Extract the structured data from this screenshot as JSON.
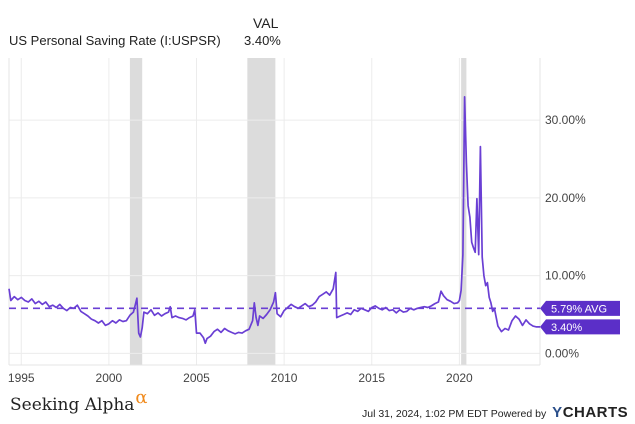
{
  "header": {
    "val_label": "VAL",
    "series_name": "US Personal Saving Rate (I:USPSR)",
    "series_value": "3.40%"
  },
  "chart_data": {
    "type": "line",
    "title": "US Personal Saving Rate (I:USPSR)",
    "xlabel": "",
    "ylabel": "",
    "x_ticks": [
      "1995",
      "2000",
      "2005",
      "2010",
      "2015",
      "2020"
    ],
    "y_ticks": [
      "0.00%",
      "10.00%",
      "20.00%",
      "30.00%"
    ],
    "xlim": [
      1994.3,
      2024.6
    ],
    "ylim": [
      -1.5,
      38
    ],
    "grid": true,
    "recessions": [
      [
        2001.2,
        2001.9
      ],
      [
        2007.9,
        2009.5
      ],
      [
        2020.1,
        2020.4
      ]
    ],
    "average": {
      "value": 5.79,
      "label": "5.79% AVG"
    },
    "last": {
      "value": 3.4,
      "label": "3.40%"
    },
    "series": [
      {
        "color": "#6a3fd4",
        "points": [
          [
            1994.3,
            8.3
          ],
          [
            1994.4,
            6.8
          ],
          [
            1994.6,
            7.3
          ],
          [
            1994.8,
            6.9
          ],
          [
            1995.0,
            7.2
          ],
          [
            1995.2,
            6.8
          ],
          [
            1995.4,
            6.6
          ],
          [
            1995.6,
            7.0
          ],
          [
            1995.8,
            6.4
          ],
          [
            1996.0,
            6.7
          ],
          [
            1996.2,
            6.3
          ],
          [
            1996.4,
            6.6
          ],
          [
            1996.6,
            6.0
          ],
          [
            1996.8,
            6.2
          ],
          [
            1997.0,
            5.9
          ],
          [
            1997.2,
            6.3
          ],
          [
            1997.4,
            5.8
          ],
          [
            1997.6,
            5.5
          ],
          [
            1997.8,
            5.9
          ],
          [
            1998.0,
            5.8
          ],
          [
            1998.2,
            6.2
          ],
          [
            1998.4,
            5.4
          ],
          [
            1998.6,
            5.1
          ],
          [
            1998.8,
            4.8
          ],
          [
            1999.0,
            4.4
          ],
          [
            1999.2,
            4.2
          ],
          [
            1999.4,
            3.9
          ],
          [
            1999.6,
            4.2
          ],
          [
            1999.8,
            3.6
          ],
          [
            2000.0,
            3.8
          ],
          [
            2000.2,
            4.2
          ],
          [
            2000.4,
            3.9
          ],
          [
            2000.6,
            4.3
          ],
          [
            2000.8,
            4.1
          ],
          [
            2001.0,
            4.2
          ],
          [
            2001.2,
            4.9
          ],
          [
            2001.4,
            5.3
          ],
          [
            2001.5,
            6.2
          ],
          [
            2001.6,
            7.1
          ],
          [
            2001.7,
            2.6
          ],
          [
            2001.8,
            2.1
          ],
          [
            2001.9,
            3.3
          ],
          [
            2002.0,
            5.3
          ],
          [
            2002.2,
            5.1
          ],
          [
            2002.4,
            5.6
          ],
          [
            2002.6,
            4.9
          ],
          [
            2002.8,
            5.2
          ],
          [
            2003.0,
            4.8
          ],
          [
            2003.2,
            5.1
          ],
          [
            2003.4,
            5.3
          ],
          [
            2003.5,
            6.0
          ],
          [
            2003.6,
            4.6
          ],
          [
            2003.8,
            4.8
          ],
          [
            2004.0,
            4.6
          ],
          [
            2004.2,
            4.5
          ],
          [
            2004.4,
            4.3
          ],
          [
            2004.6,
            4.6
          ],
          [
            2004.8,
            4.8
          ],
          [
            2004.9,
            5.6
          ],
          [
            2005.0,
            2.6
          ],
          [
            2005.2,
            2.6
          ],
          [
            2005.4,
            2.0
          ],
          [
            2005.5,
            1.3
          ],
          [
            2005.6,
            1.9
          ],
          [
            2005.8,
            2.2
          ],
          [
            2006.0,
            2.8
          ],
          [
            2006.2,
            3.1
          ],
          [
            2006.4,
            2.7
          ],
          [
            2006.6,
            3.2
          ],
          [
            2006.8,
            2.9
          ],
          [
            2007.0,
            2.7
          ],
          [
            2007.2,
            2.5
          ],
          [
            2007.4,
            2.7
          ],
          [
            2007.6,
            2.6
          ],
          [
            2007.8,
            2.9
          ],
          [
            2008.0,
            3.1
          ],
          [
            2008.2,
            4.2
          ],
          [
            2008.3,
            6.5
          ],
          [
            2008.4,
            4.6
          ],
          [
            2008.5,
            3.6
          ],
          [
            2008.6,
            4.8
          ],
          [
            2008.8,
            4.5
          ],
          [
            2009.0,
            5.0
          ],
          [
            2009.2,
            5.6
          ],
          [
            2009.4,
            6.6
          ],
          [
            2009.5,
            7.8
          ],
          [
            2009.6,
            5.1
          ],
          [
            2009.8,
            4.7
          ],
          [
            2010.0,
            5.5
          ],
          [
            2010.2,
            5.9
          ],
          [
            2010.4,
            6.3
          ],
          [
            2010.6,
            6.0
          ],
          [
            2010.8,
            5.8
          ],
          [
            2011.0,
            6.1
          ],
          [
            2011.2,
            6.4
          ],
          [
            2011.4,
            6.0
          ],
          [
            2011.6,
            6.2
          ],
          [
            2011.8,
            6.6
          ],
          [
            2012.0,
            7.3
          ],
          [
            2012.2,
            7.6
          ],
          [
            2012.4,
            7.9
          ],
          [
            2012.6,
            7.5
          ],
          [
            2012.8,
            8.3
          ],
          [
            2012.95,
            10.4
          ],
          [
            2013.0,
            4.6
          ],
          [
            2013.2,
            4.8
          ],
          [
            2013.4,
            5.0
          ],
          [
            2013.6,
            5.2
          ],
          [
            2013.8,
            5.0
          ],
          [
            2014.0,
            5.6
          ],
          [
            2014.2,
            5.4
          ],
          [
            2014.4,
            5.8
          ],
          [
            2014.6,
            5.6
          ],
          [
            2014.8,
            5.4
          ],
          [
            2015.0,
            5.9
          ],
          [
            2015.2,
            6.1
          ],
          [
            2015.4,
            5.8
          ],
          [
            2015.6,
            5.6
          ],
          [
            2015.8,
            5.9
          ],
          [
            2016.0,
            5.5
          ],
          [
            2016.2,
            5.6
          ],
          [
            2016.4,
            5.2
          ],
          [
            2016.6,
            5.6
          ],
          [
            2016.8,
            5.3
          ],
          [
            2017.0,
            5.4
          ],
          [
            2017.2,
            5.8
          ],
          [
            2017.4,
            5.6
          ],
          [
            2017.6,
            5.8
          ],
          [
            2017.8,
            5.9
          ],
          [
            2018.0,
            6.0
          ],
          [
            2018.2,
            5.9
          ],
          [
            2018.4,
            6.1
          ],
          [
            2018.6,
            6.4
          ],
          [
            2018.8,
            6.6
          ],
          [
            2018.95,
            8.0
          ],
          [
            2019.1,
            7.4
          ],
          [
            2019.3,
            6.9
          ],
          [
            2019.5,
            6.7
          ],
          [
            2019.7,
            6.4
          ],
          [
            2019.9,
            6.5
          ],
          [
            2020.0,
            6.8
          ],
          [
            2020.1,
            8.1
          ],
          [
            2020.2,
            12.7
          ],
          [
            2020.3,
            33.0
          ],
          [
            2020.4,
            24.5
          ],
          [
            2020.5,
            19.0
          ],
          [
            2020.6,
            17.5
          ],
          [
            2020.7,
            14.3
          ],
          [
            2020.8,
            13.6
          ],
          [
            2020.9,
            13.0
          ],
          [
            2021.0,
            19.9
          ],
          [
            2021.1,
            12.7
          ],
          [
            2021.2,
            26.6
          ],
          [
            2021.3,
            12.4
          ],
          [
            2021.4,
            10.0
          ],
          [
            2021.5,
            8.7
          ],
          [
            2021.6,
            9.1
          ],
          [
            2021.7,
            7.2
          ],
          [
            2021.8,
            6.5
          ],
          [
            2021.9,
            5.4
          ],
          [
            2022.0,
            5.8
          ],
          [
            2022.2,
            3.5
          ],
          [
            2022.4,
            2.8
          ],
          [
            2022.6,
            3.2
          ],
          [
            2022.8,
            3.0
          ],
          [
            2023.0,
            4.2
          ],
          [
            2023.2,
            4.8
          ],
          [
            2023.4,
            4.4
          ],
          [
            2023.6,
            3.6
          ],
          [
            2023.8,
            4.3
          ],
          [
            2024.0,
            3.8
          ],
          [
            2024.2,
            3.5
          ],
          [
            2024.4,
            3.4
          ],
          [
            2024.6,
            3.4
          ]
        ]
      }
    ]
  },
  "footer": {
    "brand": "Seeking Alpha",
    "brand_symbol": "α",
    "timestamp": "Jul 31, 2024, 1:02 PM EDT Powered by",
    "powered_logo_y": "Y",
    "powered_logo_rest": "CHARTS"
  }
}
